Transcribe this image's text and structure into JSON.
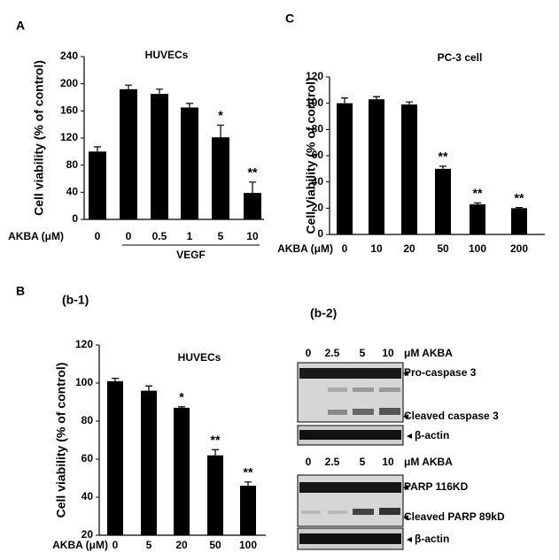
{
  "chart_data": [
    {
      "type": "bar",
      "panel": "A",
      "title": "HUVECs",
      "y_label": "Cell viability (% of control)",
      "x_label": "AKBA (μM)",
      "group_label": "VEGF",
      "categories": [
        "0",
        "0",
        "0.5",
        "1",
        "5",
        "10"
      ],
      "values": [
        100,
        192,
        185,
        165,
        121,
        39
      ],
      "errors": [
        7,
        6,
        7,
        6,
        18,
        16
      ],
      "annotations": [
        null,
        null,
        null,
        null,
        "*",
        "**"
      ],
      "color": "#000000",
      "ylim": [
        0,
        240
      ],
      "yticks": [
        0,
        40,
        80,
        120,
        160,
        200,
        240
      ]
    },
    {
      "type": "bar",
      "panel": "C",
      "title": "PC-3 cell",
      "y_label": "Cell Viability  (% of control)",
      "x_label": "AKBA (μM)",
      "categories": [
        "0",
        "10",
        "20",
        "50",
        "100",
        "200"
      ],
      "values": [
        100,
        103,
        99,
        50,
        23,
        20
      ],
      "errors": [
        4,
        2,
        2,
        2,
        1,
        0.5
      ],
      "annotations": [
        null,
        null,
        null,
        "**",
        "**",
        "**"
      ],
      "color": "#000000",
      "ylim": [
        0,
        120
      ],
      "yticks": [
        0,
        20,
        40,
        60,
        80,
        100,
        120
      ]
    },
    {
      "type": "bar",
      "panel": "B",
      "subpanel": "(b-1)",
      "title": "HUVECs",
      "y_label": "Cell viability (% of control)",
      "x_label": "AKBA (μM)",
      "categories": [
        "0",
        "5",
        "20",
        "50",
        "100"
      ],
      "values": [
        101,
        96,
        87,
        62,
        46
      ],
      "errors": [
        1.5,
        2.5,
        0.5,
        3,
        2
      ],
      "annotations": [
        null,
        null,
        "*",
        "**",
        "**"
      ],
      "color": "#000000",
      "ylim": [
        20,
        120
      ],
      "yticks": [
        20,
        40,
        60,
        80,
        100,
        120
      ]
    }
  ],
  "blot": {
    "subpanel": "(b-2)",
    "lanes": [
      "0",
      "2.5",
      "5",
      "10"
    ],
    "unit": "μM AKBA",
    "caspase_labels": [
      "Pro-caspase 3",
      "Cleaved caspase 3",
      "β-actin"
    ],
    "parp_labels": [
      "PARP 116KD",
      "Cleaved PARP 89kD",
      "β-actin"
    ]
  }
}
